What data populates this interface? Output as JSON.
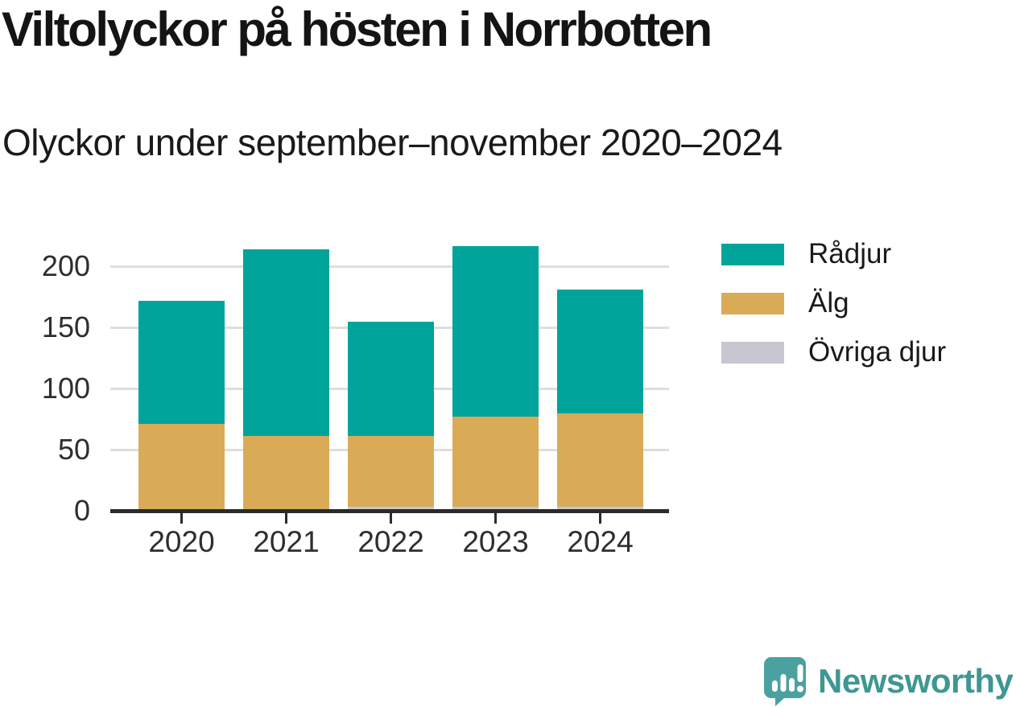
{
  "header": {
    "title": "Viltolyckor på hösten i Norrbotten",
    "subtitle": "Olyckor under september–november 2020–2024"
  },
  "chart_data": {
    "type": "bar",
    "stacked": true,
    "title": "Viltolyckor på hösten i Norrbotten",
    "subtitle": "Olyckor under september–november 2020–2024",
    "categories": [
      "2020",
      "2021",
      "2022",
      "2023",
      "2024"
    ],
    "series": [
      {
        "name": "Rådjur",
        "color": "#00a49a",
        "values": [
          101,
          153,
          94,
          140,
          101
        ]
      },
      {
        "name": "Älg",
        "color": "#d9ab57",
        "values": [
          70,
          60,
          58,
          74,
          77
        ]
      },
      {
        "name": "Övriga djur",
        "color": "#c8c6d0",
        "values": [
          1,
          1,
          3,
          3,
          3
        ]
      }
    ],
    "totals": [
      172,
      214,
      155,
      217,
      181
    ],
    "yticks": [
      0,
      50,
      100,
      150,
      200
    ],
    "ylim": [
      0,
      224
    ],
    "xlabel": "",
    "ylabel": "",
    "grid": true,
    "legend_position": "right"
  },
  "footer": {
    "brand": "Newsworthy"
  },
  "colors": {
    "axis": "#2b2b2b",
    "grid": "#dedede",
    "tick_text": "#2e2e2e",
    "title_text": "#141414",
    "logo_teal": "#4ba1a0",
    "logo_text": "#3e9793"
  }
}
